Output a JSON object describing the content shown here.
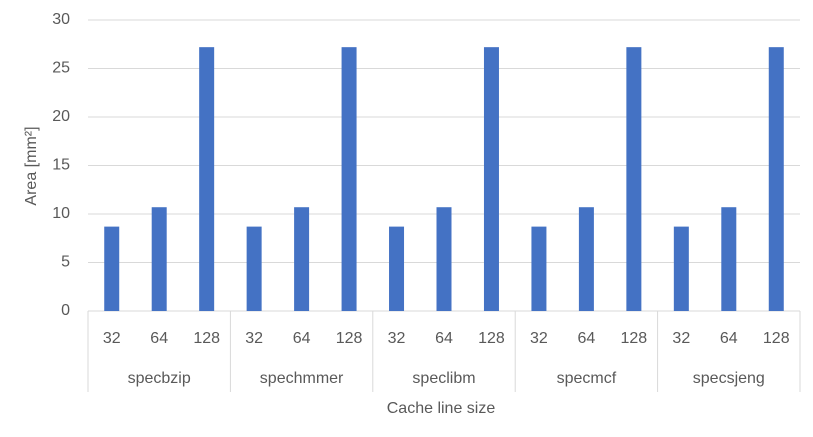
{
  "chart_data": {
    "type": "bar",
    "x_label": "Cache line size",
    "y_label": "Area [mm²]",
    "categories": [
      "32",
      "64",
      "128"
    ],
    "groups": [
      {
        "name": "specbzip",
        "values": [
          8.7,
          10.7,
          27.2
        ]
      },
      {
        "name": "spechmmer",
        "values": [
          8.7,
          10.7,
          27.2
        ]
      },
      {
        "name": "speclibm",
        "values": [
          8.7,
          10.7,
          27.2
        ]
      },
      {
        "name": "specmcf",
        "values": [
          8.7,
          10.7,
          27.2
        ]
      },
      {
        "name": "specsjeng",
        "values": [
          8.7,
          10.7,
          27.2
        ]
      }
    ],
    "color": "#4472c4",
    "ylim": [
      0,
      30
    ],
    "yticks": [
      0,
      5,
      10,
      15,
      20,
      25,
      30
    ],
    "grid": true
  }
}
